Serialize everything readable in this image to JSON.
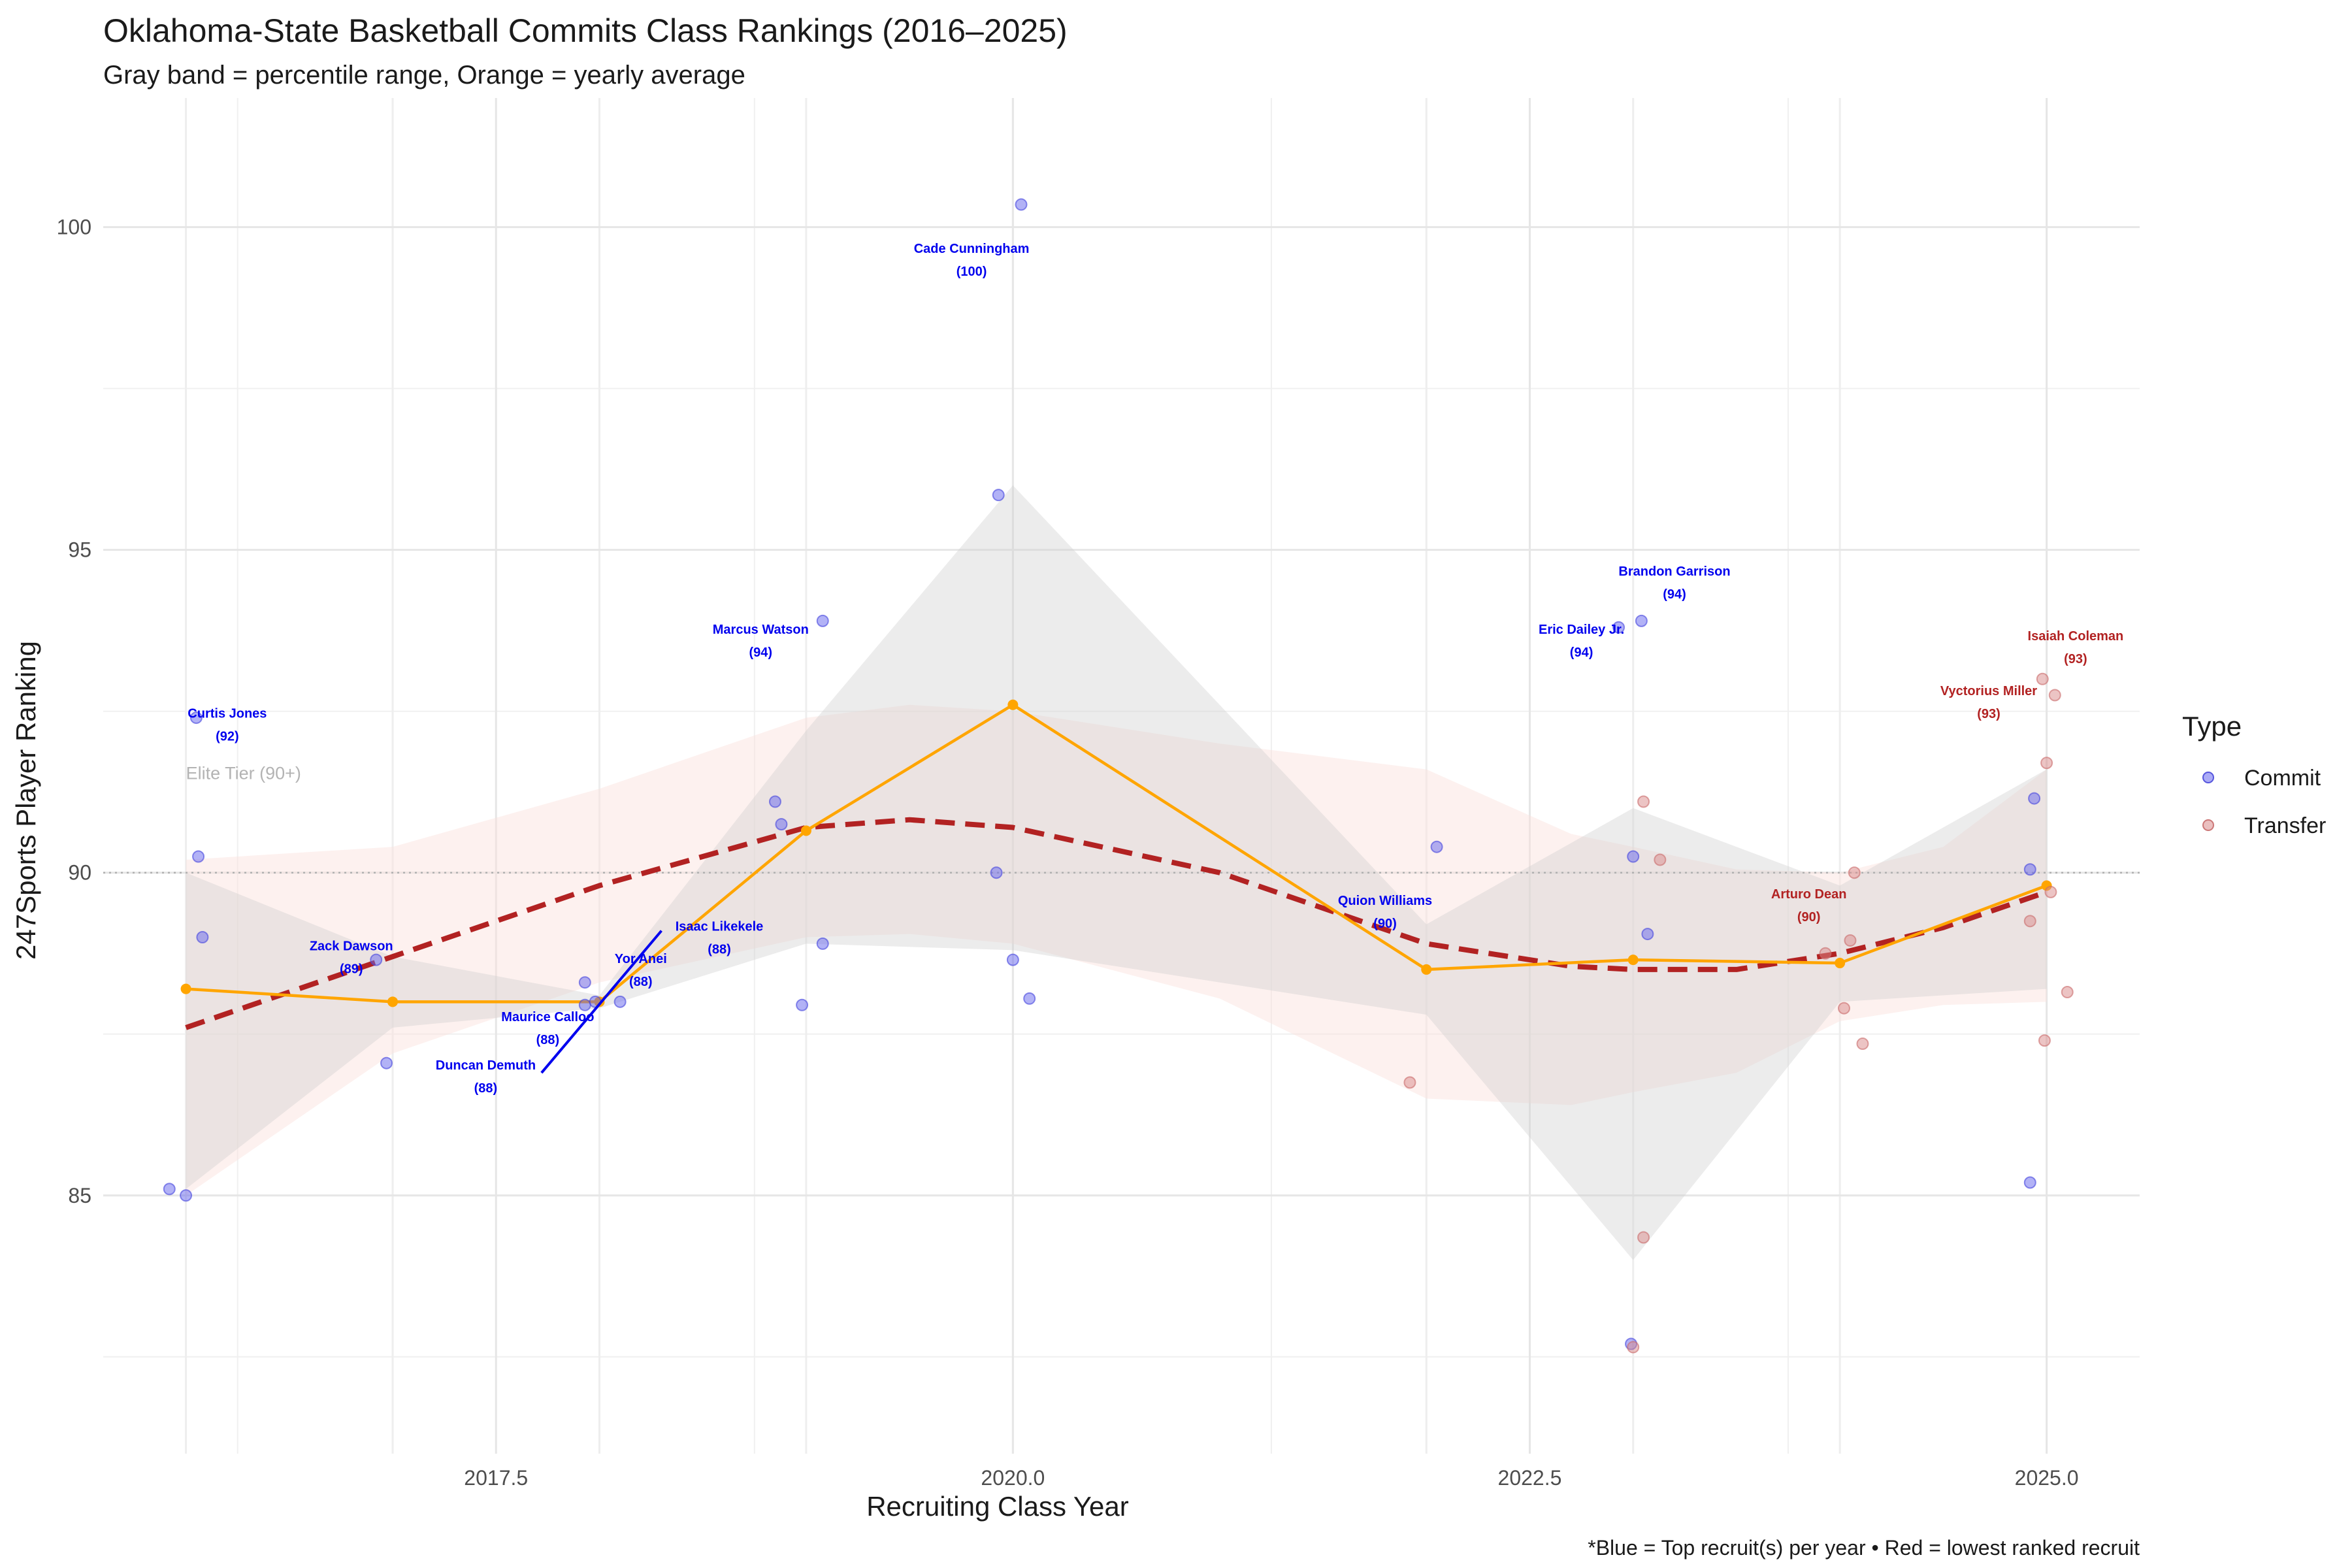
{
  "chart_data": {
    "type": "scatter",
    "title": "Oklahoma-State Basketball Commits Class Rankings (2016–2025)",
    "subtitle": "Gray band = percentile range, Orange = yearly average",
    "caption": "*Blue = Top recruit(s) per year • Red = lowest ranked recruit",
    "xlabel": "Recruiting Class Year",
    "ylabel": "247Sports Player Ranking",
    "xlim": [
      2015.6,
      2025.45
    ],
    "ylim": [
      81.0,
      102.0
    ],
    "x_ticks": [
      2017.5,
      2020.0,
      2022.5,
      2025.0
    ],
    "x_tick_labels": [
      "2017.5",
      "2020.0",
      "2022.5",
      "2025.0"
    ],
    "y_ticks": [
      85,
      90,
      95,
      100
    ],
    "y_tick_labels": [
      "85",
      "90",
      "95",
      "100"
    ],
    "grid": true,
    "legend": {
      "title": "Type",
      "position": "right",
      "items": [
        {
          "label": "Commit",
          "color": "#6666ee"
        },
        {
          "label": "Transfer",
          "color": "#d98a8a"
        }
      ]
    },
    "reference_line": {
      "y": 90,
      "label": "Elite Tier (90+)"
    },
    "points": {
      "commit": [
        [
          2015.92,
          85.1
        ],
        [
          2016.0,
          85.0
        ],
        [
          2016.05,
          92.4
        ],
        [
          2016.06,
          90.25
        ],
        [
          2016.08,
          89.0
        ],
        [
          2016.92,
          88.65
        ],
        [
          2016.97,
          87.05
        ],
        [
          2017.93,
          88.3
        ],
        [
          2017.93,
          87.95
        ],
        [
          2017.98,
          88.0
        ],
        [
          2018.1,
          88.0
        ],
        [
          2018.85,
          91.1
        ],
        [
          2018.88,
          90.75
        ],
        [
          2018.98,
          87.95
        ],
        [
          2019.08,
          88.9
        ],
        [
          2019.08,
          93.9
        ],
        [
          2019.92,
          90.0
        ],
        [
          2019.93,
          95.85
        ],
        [
          2020.0,
          88.65
        ],
        [
          2020.04,
          100.35
        ],
        [
          2020.08,
          88.05
        ],
        [
          2022.05,
          90.4
        ],
        [
          2022.93,
          93.8
        ],
        [
          2022.99,
          82.7
        ],
        [
          2023.0,
          90.25
        ],
        [
          2023.04,
          93.9
        ],
        [
          2023.07,
          89.05
        ],
        [
          2024.92,
          85.2
        ],
        [
          2024.92,
          90.05
        ],
        [
          2024.94,
          91.15
        ]
      ],
      "transfer": [
        [
          2021.92,
          86.75
        ],
        [
          2023.0,
          82.65
        ],
        [
          2023.05,
          91.1
        ],
        [
          2023.05,
          84.35
        ],
        [
          2023.13,
          90.2
        ],
        [
          2023.93,
          88.75
        ],
        [
          2024.02,
          87.9
        ],
        [
          2024.05,
          88.95
        ],
        [
          2024.07,
          90.0
        ],
        [
          2024.11,
          87.35
        ],
        [
          2024.92,
          89.25
        ],
        [
          2024.98,
          93.0
        ],
        [
          2024.99,
          87.4
        ],
        [
          2025.0,
          91.7
        ],
        [
          2025.02,
          89.7
        ],
        [
          2025.04,
          92.75
        ],
        [
          2025.1,
          88.15
        ]
      ]
    },
    "yearly_average": {
      "x": [
        2016,
        2017,
        2018,
        2019,
        2020,
        2022,
        2023,
        2024,
        2025
      ],
      "y": [
        88.2,
        88.0,
        88.0,
        90.65,
        92.6,
        88.5,
        88.65,
        88.6,
        89.8
      ]
    },
    "percentile_band": {
      "x": [
        2016,
        2017,
        2018,
        2019,
        2020,
        2022,
        2023,
        2024,
        2025
      ],
      "lower": [
        85.1,
        87.6,
        87.9,
        88.9,
        88.8,
        87.8,
        84.0,
        88.0,
        88.2
      ],
      "upper": [
        90.0,
        88.7,
        88.1,
        92.2,
        96.0,
        89.2,
        91.0,
        89.8,
        91.6
      ]
    },
    "smooth_trend": {
      "x": [
        2016.0,
        2017.0,
        2018.0,
        2019.0,
        2019.5,
        2020.0,
        2021.0,
        2022.0,
        2022.7,
        2023.0,
        2023.5,
        2024.0,
        2024.5,
        2025.0
      ],
      "y": [
        87.6,
        88.7,
        89.8,
        90.7,
        90.82,
        90.7,
        90.0,
        88.9,
        88.55,
        88.5,
        88.5,
        88.75,
        89.15,
        89.7
      ]
    },
    "smooth_ci": {
      "x": [
        2016.0,
        2017.0,
        2018.0,
        2019.0,
        2019.5,
        2020.0,
        2021.0,
        2022.0,
        2022.7,
        2023.0,
        2023.5,
        2024.0,
        2024.5,
        2025.0
      ],
      "lower": [
        85.0,
        87.2,
        88.3,
        89.0,
        89.05,
        88.9,
        88.05,
        86.5,
        86.4,
        86.6,
        86.9,
        87.7,
        87.95,
        88.0
      ],
      "upper": [
        90.2,
        90.4,
        91.3,
        92.4,
        92.6,
        92.5,
        92.0,
        91.6,
        90.6,
        90.4,
        90.05,
        90.0,
        90.4,
        91.6
      ]
    },
    "annotations": [
      {
        "name": "Curtis Jones",
        "rating": "(92)",
        "x": 2016.05,
        "y": 92.4,
        "x_text": 2016.2,
        "y_text": 92.4,
        "color": "#0000ee"
      },
      {
        "name": "Zack Dawson",
        "rating": "(89)",
        "x": 2016.92,
        "y": 88.65,
        "x_text": 2016.8,
        "y_text": 88.8,
        "color": "#0000ee"
      },
      {
        "name": "Duncan Demuth",
        "rating": "(88)",
        "x": 2018.3,
        "y": 89.1,
        "x_text": 2017.45,
        "y_text": 86.95,
        "color": "#0000ee"
      },
      {
        "name": "Maurice Calloo",
        "rating": "(88)",
        "x": 2017.98,
        "y": 88.0,
        "x_text": 2017.75,
        "y_text": 87.7,
        "color": "#0000ee"
      },
      {
        "name": "Yor Anei",
        "rating": "(88)",
        "x": 2018.1,
        "y": 88.0,
        "x_text": 2018.2,
        "y_text": 88.6,
        "color": "#0000ee"
      },
      {
        "name": "Isaac Likekele",
        "rating": "(88)",
        "x": 2018.3,
        "y": 89.1,
        "x_text": 2018.58,
        "y_text": 89.1,
        "color": "#0000ee"
      },
      {
        "name": "Marcus Watson",
        "rating": "(94)",
        "x": 2019.08,
        "y": 93.9,
        "x_text": 2018.78,
        "y_text": 93.7,
        "color": "#0000ee"
      },
      {
        "name": "Cade Cunningham",
        "rating": "(100)",
        "x": 2020.04,
        "y": 100.35,
        "x_text": 2019.8,
        "y_text": 99.6,
        "color": "#0000ee"
      },
      {
        "name": "Quion Williams",
        "rating": "(90)",
        "x": 2022.05,
        "y": 90.4,
        "x_text": 2021.8,
        "y_text": 89.5,
        "color": "#0000ee"
      },
      {
        "name": "Eric Dailey Jr.",
        "rating": "(94)",
        "x": 2022.93,
        "y": 93.8,
        "x_text": 2022.75,
        "y_text": 93.7,
        "color": "#0000ee"
      },
      {
        "name": "Brandon Garrison",
        "rating": "(94)",
        "x": 2023.04,
        "y": 93.9,
        "x_text": 2023.2,
        "y_text": 94.6,
        "color": "#0000ee"
      },
      {
        "name": "Arturo Dean",
        "rating": "(90)",
        "x": 2024.07,
        "y": 90.0,
        "x_text": 2023.85,
        "y_text": 89.6,
        "color": "#b22222"
      },
      {
        "name": "Vyctorius Miller",
        "rating": "(93)",
        "x": 2024.98,
        "y": 93.0,
        "x_text": 2024.72,
        "y_text": 92.75,
        "color": "#b22222"
      },
      {
        "name": "Isaiah Coleman",
        "rating": "(93)",
        "x": 2025.04,
        "y": 92.75,
        "x_text": 2025.14,
        "y_text": 93.6,
        "color": "#b22222"
      }
    ]
  }
}
